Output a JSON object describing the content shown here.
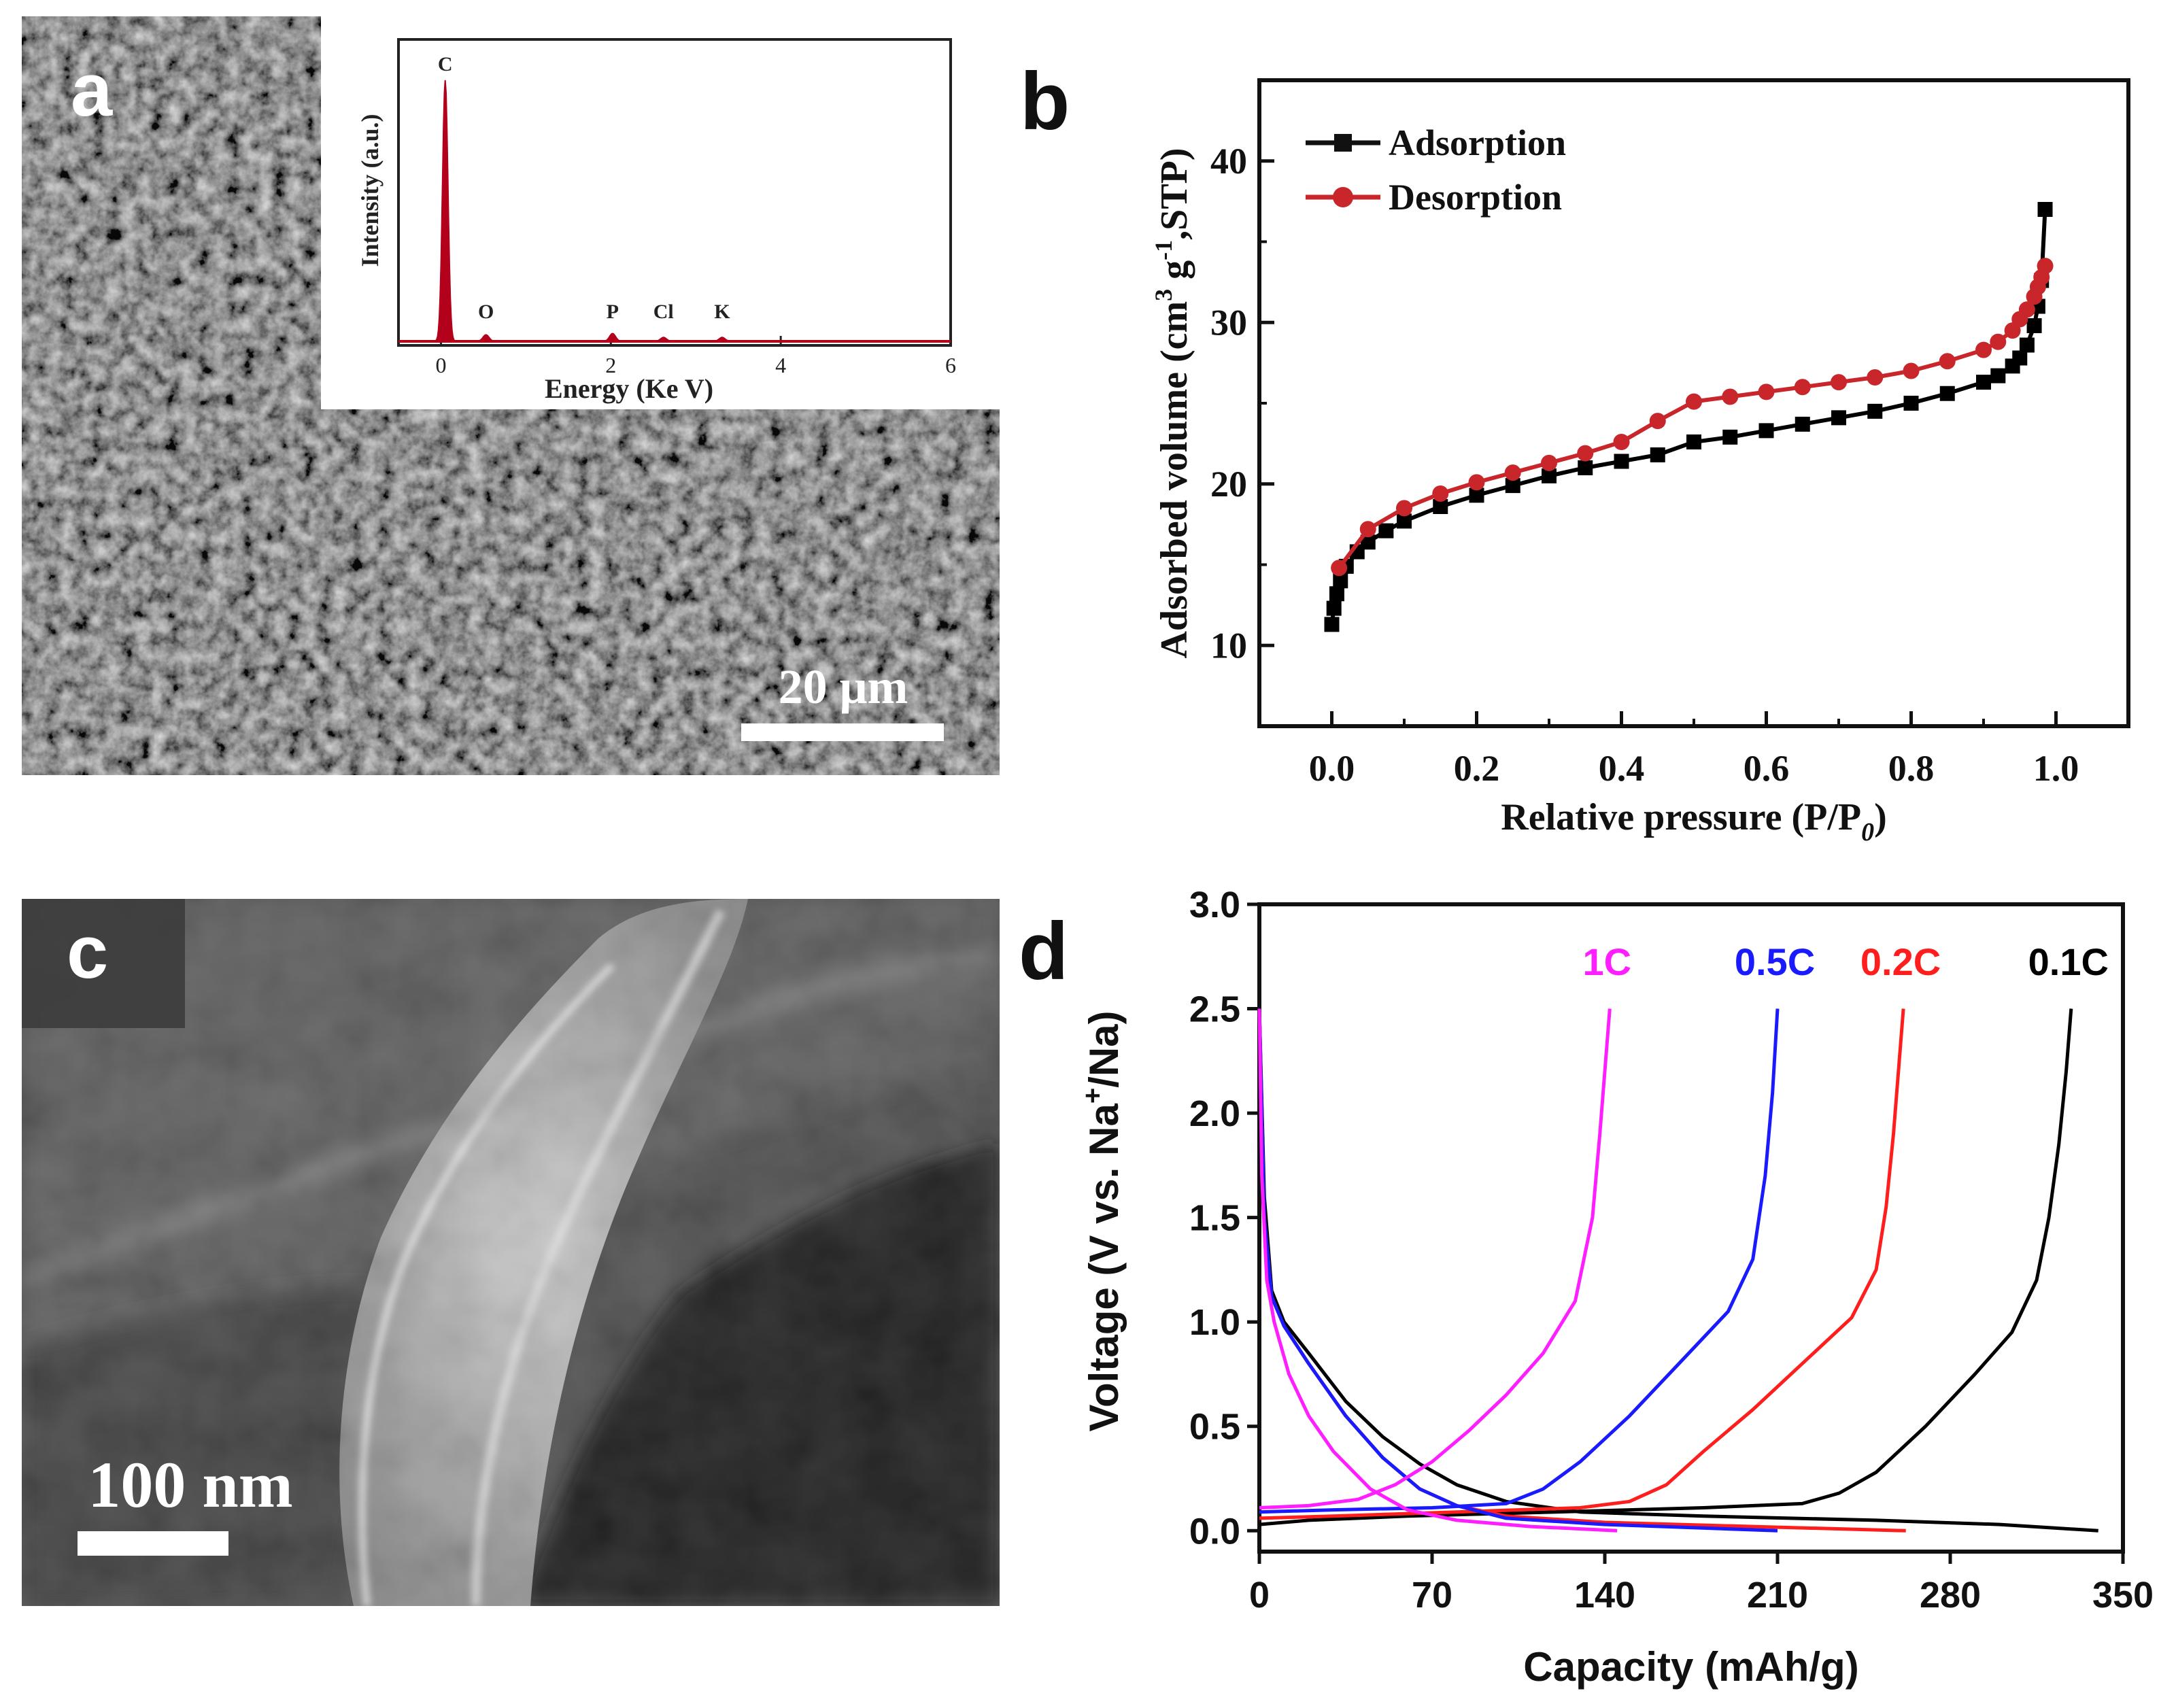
{
  "panels": {
    "a": {
      "letter": "a",
      "scale_bar": "20 μm",
      "inset": {
        "ylabel": "Intensity (a.u.)",
        "xlabel": "Energy (Ke V)",
        "x_ticks": [
          "0",
          "2",
          "4",
          "6"
        ],
        "xlim": [
          -0.5,
          6
        ],
        "peaks": [
          {
            "label": "C",
            "energy": 0.05,
            "rel_height": 1.0
          },
          {
            "label": "O",
            "energy": 0.53,
            "rel_height": 0.025
          },
          {
            "label": "P",
            "energy": 2.02,
            "rel_height": 0.03
          },
          {
            "label": "Cl",
            "energy": 2.62,
            "rel_height": 0.015
          },
          {
            "label": "K",
            "energy": 3.31,
            "rel_height": 0.015
          }
        ],
        "fill_color": "#b3001b"
      }
    },
    "b": {
      "letter": "b",
      "chart_data": {
        "type": "line",
        "xlabel": "Relative pressure (P/P",
        "xlabel_sub": "0",
        "ylabel": "Adsorbed volume (cm",
        "ylabel_sup": "3",
        "ylabel_mid": " g",
        "ylabel_sup2": "-1",
        "ylabel_end": ",STP)",
        "xlim": [
          -0.1,
          1.1
        ],
        "ylim": [
          5,
          45
        ],
        "x_ticks": [
          "0.0",
          "0.2",
          "0.4",
          "0.6",
          "0.8",
          "1.0"
        ],
        "y_ticks": [
          "10",
          "20",
          "30",
          "40"
        ],
        "legend": "top-left",
        "series": [
          {
            "name": "Adsorption",
            "color": "#000000",
            "marker": "square",
            "x": [
              0.0,
              0.003,
              0.007,
              0.012,
              0.02,
              0.035,
              0.05,
              0.075,
              0.1,
              0.15,
              0.2,
              0.25,
              0.3,
              0.35,
              0.4,
              0.45,
              0.5,
              0.55,
              0.6,
              0.65,
              0.7,
              0.75,
              0.8,
              0.85,
              0.9,
              0.92,
              0.94,
              0.95,
              0.96,
              0.97,
              0.975,
              0.98,
              0.985
            ],
            "y": [
              11.3,
              12.3,
              13.2,
              14.0,
              14.9,
              15.8,
              16.4,
              17.1,
              17.7,
              18.6,
              19.3,
              19.9,
              20.5,
              21.0,
              21.4,
              21.8,
              22.6,
              22.9,
              23.3,
              23.7,
              24.1,
              24.5,
              25.0,
              25.6,
              26.3,
              26.7,
              27.3,
              27.8,
              28.6,
              29.8,
              31.0,
              32.6,
              37.0
            ]
          },
          {
            "name": "Desorption",
            "color": "#c8262b",
            "marker": "circle",
            "x": [
              0.985,
              0.98,
              0.975,
              0.97,
              0.96,
              0.95,
              0.94,
              0.92,
              0.9,
              0.85,
              0.8,
              0.75,
              0.7,
              0.65,
              0.6,
              0.55,
              0.5,
              0.45,
              0.4,
              0.35,
              0.3,
              0.25,
              0.2,
              0.15,
              0.1,
              0.05,
              0.01
            ],
            "y": [
              33.5,
              32.8,
              32.2,
              31.6,
              30.8,
              30.2,
              29.5,
              28.8,
              28.3,
              27.6,
              27.0,
              26.6,
              26.3,
              26.0,
              25.7,
              25.4,
              25.1,
              23.9,
              22.6,
              21.9,
              21.3,
              20.7,
              20.1,
              19.4,
              18.5,
              17.2,
              14.8
            ]
          }
        ]
      }
    },
    "c": {
      "letter": "c",
      "scale_bar": "100 nm"
    },
    "d": {
      "letter": "d",
      "chart_data": {
        "type": "line",
        "xlabel": "Capacity (mAh/g)",
        "ylabel": "Voltage (V vs. Na",
        "ylabel_sup": "+",
        "ylabel_end": "/Na)",
        "xlim": [
          0,
          350
        ],
        "ylim": [
          -0.1,
          3.0
        ],
        "x_ticks": [
          "0",
          "70",
          "140",
          "210",
          "280",
          "350"
        ],
        "y_ticks": [
          "0.0",
          "0.5",
          "1.0",
          "1.5",
          "2.0",
          "2.5",
          "3.0"
        ],
        "series": [
          {
            "name": "0.1C",
            "color": "#000000",
            "discharge": {
              "x": [
                0,
                2,
                5,
                10,
                20,
                35,
                50,
                65,
                80,
                100,
                130,
                180,
                250,
                300,
                340
              ],
              "y": [
                2.5,
                1.6,
                1.15,
                1.0,
                0.85,
                0.62,
                0.45,
                0.32,
                0.22,
                0.14,
                0.09,
                0.07,
                0.05,
                0.03,
                0.0
              ]
            },
            "charge": {
              "x": [
                0,
                20,
                60,
                120,
                180,
                220,
                235,
                250,
                270,
                290,
                305,
                315,
                320,
                324,
                327,
                329
              ],
              "y": [
                0.03,
                0.05,
                0.07,
                0.09,
                0.11,
                0.13,
                0.18,
                0.28,
                0.5,
                0.75,
                0.95,
                1.2,
                1.5,
                1.85,
                2.2,
                2.5
              ]
            }
          },
          {
            "name": "0.2C",
            "color": "#ff1e1e",
            "discharge": {
              "x": [
                0,
                2,
                5,
                10,
                20,
                35,
                50,
                65,
                80,
                100,
                140,
                200,
                262
              ],
              "y": [
                2.5,
                1.5,
                1.12,
                0.98,
                0.8,
                0.55,
                0.35,
                0.2,
                0.12,
                0.07,
                0.04,
                0.02,
                0.0
              ]
            },
            "charge": {
              "x": [
                0,
                30,
                80,
                130,
                150,
                165,
                180,
                200,
                220,
                240,
                250,
                254,
                257,
                259,
                261
              ],
              "y": [
                0.06,
                0.07,
                0.09,
                0.11,
                0.14,
                0.22,
                0.38,
                0.58,
                0.8,
                1.02,
                1.25,
                1.55,
                1.9,
                2.2,
                2.5
              ]
            }
          },
          {
            "name": "0.5C",
            "color": "#1a1aff",
            "discharge": {
              "x": [
                0,
                2,
                5,
                10,
                20,
                35,
                50,
                65,
                80,
                100,
                140,
                210
              ],
              "y": [
                2.5,
                1.5,
                1.12,
                0.98,
                0.8,
                0.55,
                0.35,
                0.2,
                0.12,
                0.06,
                0.03,
                0.0
              ]
            },
            "charge": {
              "x": [
                0,
                30,
                70,
                100,
                115,
                130,
                150,
                170,
                190,
                200,
                205,
                208,
                210
              ],
              "y": [
                0.09,
                0.1,
                0.11,
                0.13,
                0.2,
                0.33,
                0.55,
                0.8,
                1.05,
                1.3,
                1.7,
                2.1,
                2.5
              ]
            }
          },
          {
            "name": "1C",
            "color": "#ff1eff",
            "discharge": {
              "x": [
                0,
                1,
                3,
                6,
                12,
                20,
                30,
                45,
                60,
                80,
                110,
                145
              ],
              "y": [
                2.5,
                1.7,
                1.2,
                1.0,
                0.75,
                0.55,
                0.38,
                0.2,
                0.1,
                0.05,
                0.02,
                0.0
              ]
            },
            "charge": {
              "x": [
                0,
                20,
                40,
                55,
                70,
                85,
                100,
                115,
                128,
                135,
                138,
                140,
                142
              ],
              "y": [
                0.11,
                0.12,
                0.15,
                0.22,
                0.33,
                0.48,
                0.65,
                0.85,
                1.1,
                1.5,
                1.9,
                2.2,
                2.5
              ]
            }
          }
        ]
      }
    }
  }
}
